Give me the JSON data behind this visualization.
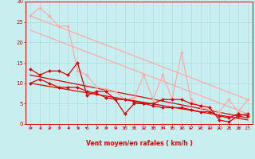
{
  "bg_color": "#c8eef0",
  "grid_color": "#aadddd",
  "x_label": "Vent moyen/en rafales ( km/h )",
  "xlim": [
    -0.5,
    23.5
  ],
  "ylim": [
    0,
    30
  ],
  "xticks": [
    0,
    1,
    2,
    3,
    4,
    5,
    6,
    7,
    8,
    9,
    10,
    11,
    12,
    13,
    14,
    15,
    16,
    17,
    18,
    19,
    20,
    21,
    22,
    23
  ],
  "yticks": [
    0,
    5,
    10,
    15,
    20,
    25,
    30
  ],
  "series": [
    {
      "name": "line1_light_jagged",
      "color": "#ffaaaa",
      "lw": 0.9,
      "marker": "D",
      "markersize": 2.0,
      "x": [
        0,
        1,
        2,
        3,
        4,
        5,
        6,
        7,
        8,
        9,
        10,
        11,
        12,
        13,
        14,
        15,
        16,
        17,
        18,
        19,
        20,
        21,
        22,
        23
      ],
      "y": [
        26.5,
        28.5,
        26.5,
        24,
        24,
        13,
        12,
        9,
        8.5,
        8,
        6,
        6.5,
        12,
        6,
        12,
        6,
        17.5,
        6,
        4,
        3.5,
        3,
        6,
        3,
        6
      ]
    },
    {
      "name": "line2_light_trend",
      "color": "#ffaaaa",
      "lw": 0.9,
      "marker": null,
      "x": [
        0,
        23
      ],
      "y": [
        26.5,
        6.0
      ]
    },
    {
      "name": "line3_light_trend2",
      "color": "#ffaaaa",
      "lw": 0.9,
      "marker": null,
      "x": [
        0,
        23
      ],
      "y": [
        23.0,
        2.5
      ]
    },
    {
      "name": "line4_dark_jagged",
      "color": "#dd0000",
      "lw": 0.9,
      "marker": "D",
      "markersize": 2.0,
      "x": [
        0,
        1,
        2,
        3,
        4,
        5,
        6,
        7,
        8,
        9,
        10,
        11,
        12,
        13,
        14,
        15,
        16,
        17,
        18,
        19,
        20,
        21,
        22,
        23
      ],
      "y": [
        13.5,
        12,
        13,
        13,
        12,
        15,
        7,
        8,
        8,
        6,
        2.5,
        5,
        5,
        5,
        6,
        6,
        6,
        5,
        4.5,
        4,
        1,
        0.5,
        2,
        2.5
      ]
    },
    {
      "name": "line5_dark_trend",
      "color": "#dd0000",
      "lw": 0.9,
      "marker": null,
      "x": [
        0,
        23
      ],
      "y": [
        12.0,
        1.5
      ]
    },
    {
      "name": "line6_dark_smooth",
      "color": "#dd0000",
      "lw": 0.9,
      "marker": "D",
      "markersize": 2.0,
      "x": [
        0,
        1,
        2,
        3,
        4,
        5,
        6,
        7,
        8,
        9,
        10,
        11,
        12,
        13,
        14,
        15,
        16,
        17,
        18,
        19,
        20,
        21,
        22,
        23
      ],
      "y": [
        10,
        11,
        10,
        9,
        9,
        9,
        8,
        7.5,
        6.5,
        6,
        6,
        5.5,
        5,
        4.5,
        4,
        4,
        4,
        3.5,
        3,
        3,
        2,
        1.5,
        2.5,
        2
      ]
    },
    {
      "name": "line7_dark_trend2",
      "color": "#dd0000",
      "lw": 0.9,
      "marker": null,
      "x": [
        0,
        23
      ],
      "y": [
        10.0,
        1.0
      ]
    }
  ],
  "arrow_color": "#cc0000",
  "tick_color": "#dd0000",
  "label_color": "#dd0000",
  "xlabel_fontsize": 5.5,
  "tick_fontsize": 4.5
}
